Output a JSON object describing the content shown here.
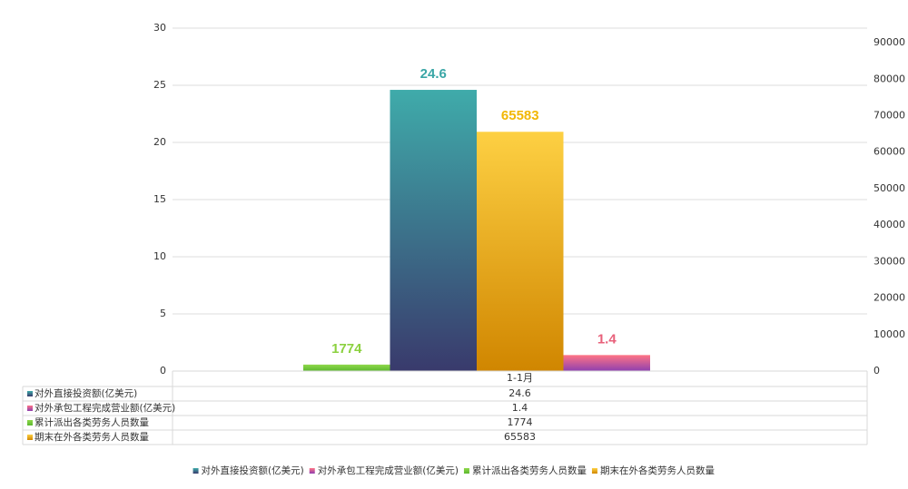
{
  "chart_data": {
    "type": "bar",
    "categories": [
      "1-1月"
    ],
    "series": [
      {
        "name": "对外直接投资额(亿美元)",
        "color": "#3fabaa",
        "color_bottom": "#393a6c",
        "values": [
          24.6
        ]
      },
      {
        "name": "对外承包工程完成营业额(亿美元)",
        "color": "#ff7485",
        "color_bottom": "#8e3fb0",
        "values": [
          1.4
        ]
      },
      {
        "name": "累计派出各类劳务人员数量",
        "color": "#8fd84c",
        "color_bottom": "#5cb82e",
        "axis": "y2",
        "values": [
          1774
        ]
      },
      {
        "name": "期末在外各类劳务人员数量",
        "color": "#fdd043",
        "color_bottom": "#d08600",
        "axis": "y2",
        "values": [
          65583
        ]
      }
    ],
    "label_colors": [
      "#3aa6a6",
      "#e8607a",
      "#8cd140",
      "#f2b705"
    ],
    "ylim": [
      0,
      30
    ],
    "yticks": [
      0,
      5,
      10,
      15,
      20,
      25,
      30
    ],
    "y2lim": [
      0,
      94000
    ],
    "y2ticks": [
      0,
      10000,
      20000,
      30000,
      40000,
      50000,
      60000,
      70000,
      80000,
      90000
    ],
    "grid": true
  }
}
